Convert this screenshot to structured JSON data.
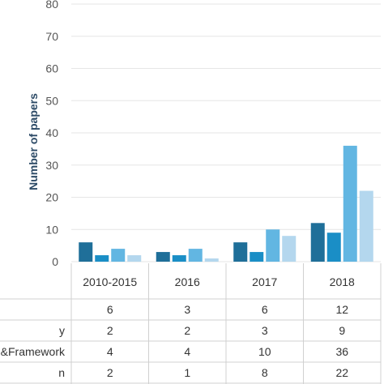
{
  "chart_data": {
    "type": "bar",
    "ylabel": "Number of papers",
    "ylim": [
      0,
      80
    ],
    "y_ticks": [
      0,
      10,
      20,
      30,
      40,
      50,
      60,
      70,
      80
    ],
    "categories": [
      "2010-2015",
      "2016",
      "2017",
      "2018"
    ],
    "series": [
      {
        "name": "",
        "values": [
          6,
          3,
          6,
          12
        ],
        "color": "#1f6f99"
      },
      {
        "name": "y",
        "values": [
          2,
          2,
          3,
          9
        ],
        "color": "#1a8ec6"
      },
      {
        "name": "&Framework",
        "values": [
          4,
          4,
          10,
          36
        ],
        "color": "#62b6e2"
      },
      {
        "name": "n",
        "values": [
          2,
          1,
          8,
          22
        ],
        "color": "#b4d7ee"
      }
    ],
    "table": {
      "row_labels": [
        "",
        "y",
        "&Framework",
        "n"
      ]
    }
  }
}
